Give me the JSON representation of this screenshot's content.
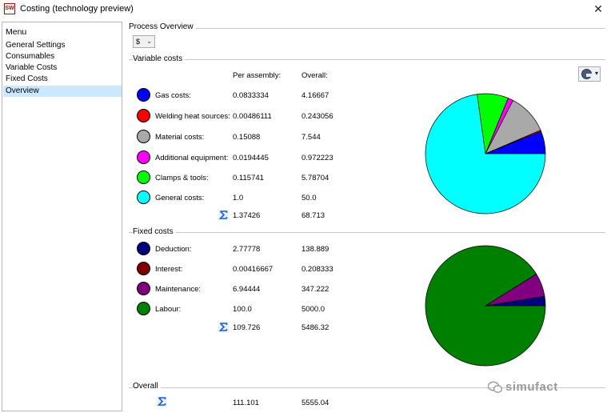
{
  "window": {
    "logo_text": "SW",
    "title": "Costing (technology preview)",
    "close_glyph": "✕"
  },
  "sidebar": {
    "header": "Menu",
    "items": [
      {
        "label": "General Settings"
      },
      {
        "label": "Consumables"
      },
      {
        "label": "Variable Costs"
      },
      {
        "label": "Fixed Costs"
      },
      {
        "label": "Overview",
        "selected": true
      }
    ]
  },
  "process_overview": {
    "title": "Process Overview",
    "currency": "$",
    "currency_arrow": "⌄"
  },
  "variable_costs": {
    "title": "Variable costs",
    "col_per_assembly": "Per assembly:",
    "col_overall": "Overall:",
    "rows": [
      {
        "label": "Gas costs:",
        "per_assembly": "0.0833334",
        "overall": "4.16667",
        "color": "#0000ff"
      },
      {
        "label": "Welding heat sources:",
        "per_assembly": "0.00486111",
        "overall": "0.243056",
        "color": "#ff0000"
      },
      {
        "label": "Material costs:",
        "per_assembly": "0.15088",
        "overall": "7.544",
        "color": "#a9a9a9"
      },
      {
        "label": "Additional equipment:",
        "per_assembly": "0.0194445",
        "overall": "0.972223",
        "color": "#ff00ff"
      },
      {
        "label": "Clamps & tools:",
        "per_assembly": "0.115741",
        "overall": "5.78704",
        "color": "#00ff00"
      },
      {
        "label": "General costs:",
        "per_assembly": "1.0",
        "overall": "50.0",
        "color": "#00ffff"
      }
    ],
    "total_per_assembly": "1.37426",
    "total_overall": "68.713"
  },
  "fixed_costs": {
    "title": "Fixed costs",
    "rows": [
      {
        "label": "Deduction:",
        "per_assembly": "2.77778",
        "overall": "138.889",
        "color": "#000080"
      },
      {
        "label": "Interest:",
        "per_assembly": "0.00416667",
        "overall": "0.208333",
        "color": "#800000"
      },
      {
        "label": "Maintenance:",
        "per_assembly": "6.94444",
        "overall": "347.222",
        "color": "#800080"
      },
      {
        "label": "Labour:",
        "per_assembly": "100.0",
        "overall": "5000.0",
        "color": "#008000"
      }
    ],
    "total_per_assembly": "109.726",
    "total_overall": "5486.32"
  },
  "overall": {
    "title": "Overall",
    "per_assembly": "111.101",
    "overall": "5555.04"
  },
  "watermark": {
    "text": "simufact"
  },
  "icons": {
    "sum": "sigma-icon",
    "chart_type": "pie-chart-icon",
    "chart_dropdown": "▾"
  }
}
